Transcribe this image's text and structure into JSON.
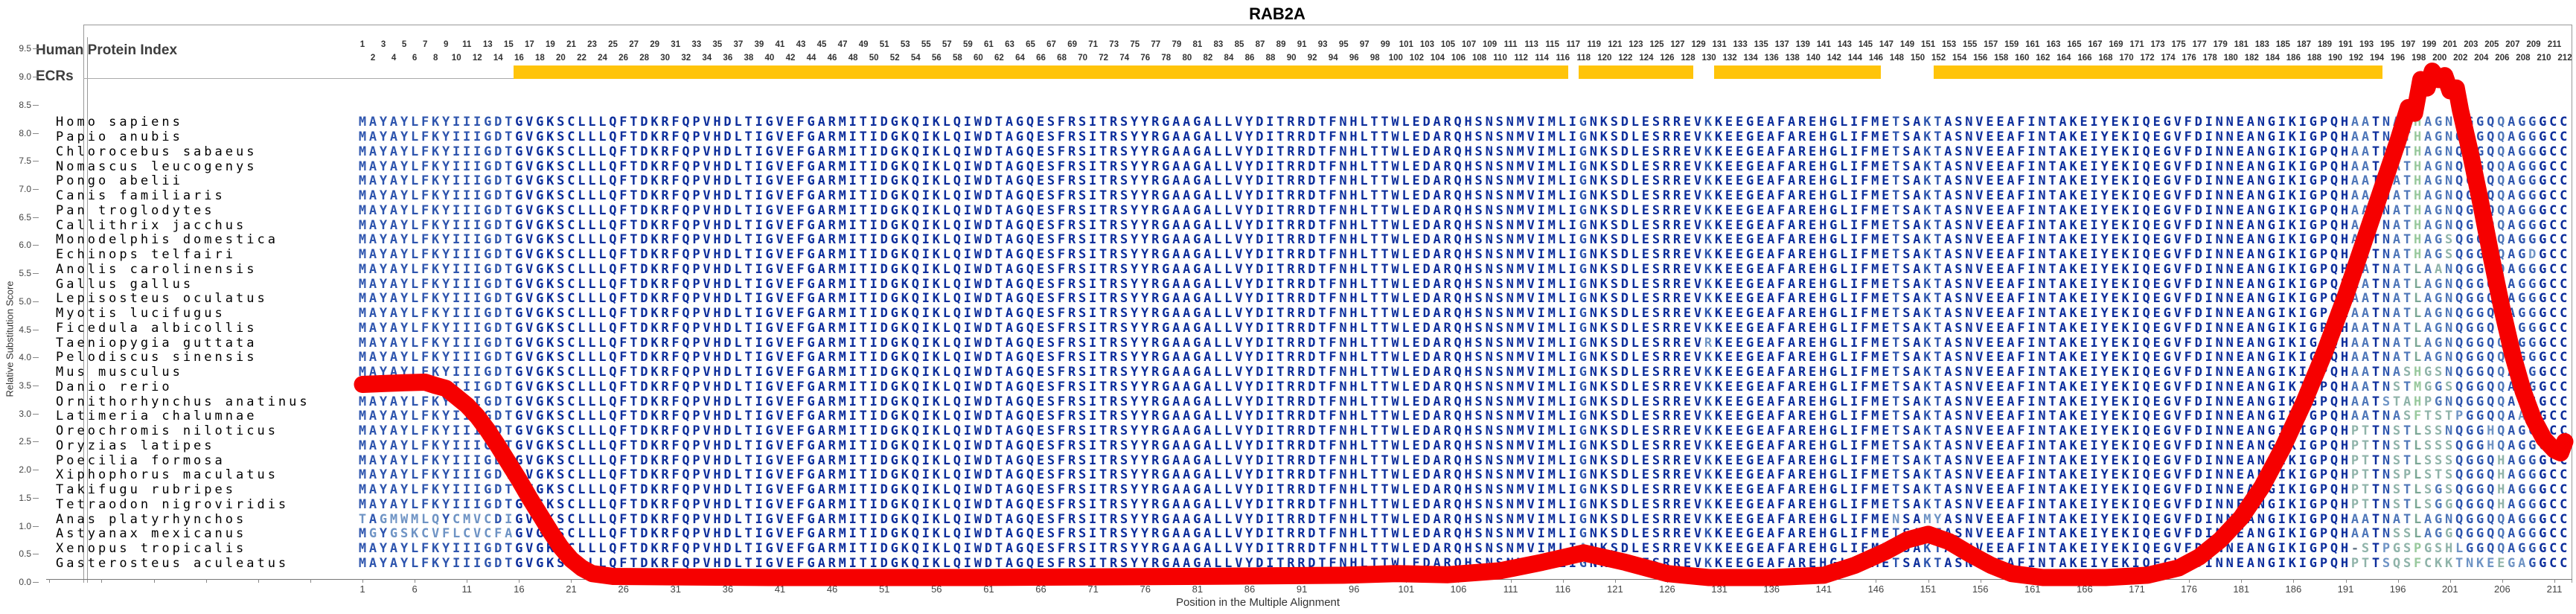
{
  "title": "RAB2A",
  "y_axis": {
    "label": "Relative Substitution Score",
    "min": 0.0,
    "max": 9.5,
    "step": 0.5
  },
  "x_axis": {
    "label": "Position in the Multiple Alignment",
    "first_tick": 1,
    "tick_step": 5,
    "last_tick": 211
  },
  "tracks": {
    "human_protein_index_label": "Human Protein Index",
    "ecrs_label": "ECRs"
  },
  "colors": {
    "ecr_yellow": "#FFC40A",
    "curve_red": "#F60000",
    "seq_dark": "#0d2e9c",
    "seq_medium": "#2e55ae",
    "seq_medium2": "#4f77b9",
    "seq_steel": "#6e93c4",
    "seq_steelgreen": "#7ca795",
    "seq_palesteel": "#8fb3a9",
    "seq_palegreen": "#98c89c",
    "gap_color": "#667788"
  },
  "alignment": {
    "positions": 212,
    "position_ruler": {
      "odd_row": "1..211 odd numbers",
      "even_row": "2..212 even numbers"
    },
    "base_sequence": "MAYAYLFKYIIIGDTGVGKSCLLLQFTDKRFQPVHDLTIGVEFGARMITIDGKQIKLQIWDTAGQESFRSITRSYYRGAAGALLVYDITRRDTFNHLTTWLEDARQHSNSNMVIMLIGNKSDLESRREVKKEEGEAFAREHGLIFMETSAKTASNVEEAFINTAKEIYEKIQEGVFDINNEANGIKIGPQHAATNATHAGNQGGQQAGGGCC",
    "species": [
      {
        "name": "Homo sapiens"
      },
      {
        "name": "Papio anubis"
      },
      {
        "name": "Chlorocebus sabaeus"
      },
      {
        "name": "Nomascus leucogenys"
      },
      {
        "name": "Pongo abelii"
      },
      {
        "name": "Canis familiaris"
      },
      {
        "name": "Pan troglodytes"
      },
      {
        "name": "Callithrix jacchus"
      },
      {
        "name": "Monodelphis domestica",
        "tail": "AATNATHAGSQGGQQAGGGCC"
      },
      {
        "name": "Echinops telfairi",
        "tail": "AATNATHAGSQGGQQAGDGCC"
      },
      {
        "name": "Anolis carolinensis",
        "tail": "AATNATLAANQGGQQAGGGCC"
      },
      {
        "name": "Gallus gallus",
        "tail": "AATNATLAGNQGGQQAGGGCC"
      },
      {
        "name": "Lepisosteus oculatus",
        "tail": "AATNATLAGNQGGQQAGGGCC"
      },
      {
        "name": "Myotis lucifugus",
        "tail": "AATNATLAGNQGGQQAGGGCC"
      },
      {
        "name": "Ficedula albicollis",
        "tail": "AATNATLAGNQGGQQAGGGCC"
      },
      {
        "name": "Taeniopygia guttata",
        "tail": "AATNATLAGNQGGQQAGGGCC",
        "subs": [
          {
            "p": 130,
            "a": "R"
          }
        ]
      },
      {
        "name": "Pelodiscus sinensis",
        "tail": "AATNATLAGNQGGQQAGGGCC"
      },
      {
        "name": "Mus musculus",
        "tail": "AATNASHGSNQGGQQAGGGCC"
      },
      {
        "name": "Danio rerio",
        "tail": "AATNSTMGGSQGGQQAGGGCC"
      },
      {
        "name": "Ornithorhynchus anatinus",
        "tail": "AATSTAHPGNQGGQQAGGGCC"
      },
      {
        "name": "Latimeria chalumnae",
        "tail": "AATNASFTSTPGGQQAAGGCC"
      },
      {
        "name": "Oreochromis niloticus",
        "tail": "PTTNSTLSSNQGGHQAGGGCC"
      },
      {
        "name": "Oryzias latipes",
        "tail": "PTTNSTLSSSQGGHQAGGGCC"
      },
      {
        "name": "Poecilia formosa",
        "tail": "PTTNSTLSSSQGGQHAGGGCC"
      },
      {
        "name": "Xiphophorus maculatus",
        "tail": "PTTNSPLSTSQGGQHAGGGCC"
      },
      {
        "name": "Takifugu rubripes",
        "tail": "PTTNSTLSGSQGGQHAGGGCC"
      },
      {
        "name": "Tetraodon nigroviridis",
        "tail": "PTTNSTLSGGQGGQHAGGGCC"
      },
      {
        "name": "Anas platyrhynchos",
        "nterm": "TAGMWMLQYCMVCDI",
        "tail": "AATNATLAGNQGGQQAGGGCC",
        "subs": [
          {
            "p": 148,
            "a": "N"
          },
          {
            "p": 151,
            "a": "M"
          },
          {
            "p": 152,
            "a": "Y"
          }
        ]
      },
      {
        "name": "Astyanax mexicanus",
        "nterm": "MGYGSKCVFLCVCFA",
        "tail": "AATNSSLAGGQGGQQAGGGCC"
      },
      {
        "name": "Xenopus tropicalis",
        "tail": "-STPGSPGSHLGGQQAGGGCC",
        "subs": [
          {
            "p": 118,
            "a": "A"
          }
        ]
      },
      {
        "name": "Gasterosteus aculeatus",
        "tail": "PTTSQSFCKKTNKEEGAGGCC"
      }
    ]
  },
  "chart_data": {
    "type": "line",
    "title": "RAB2A",
    "xlabel": "Position in the Multiple Alignment",
    "ylabel": "Relative Substitution Score",
    "xlim": [
      1,
      212
    ],
    "ylim": [
      0.0,
      9.5
    ],
    "grid": false,
    "legend": "none",
    "series_name": "Relative Substitution Score",
    "curve": [
      [
        1,
        3.52
      ],
      [
        5,
        3.55
      ],
      [
        7,
        3.56
      ],
      [
        8,
        3.5
      ],
      [
        9,
        3.45
      ],
      [
        10,
        3.3
      ],
      [
        11,
        3.15
      ],
      [
        12,
        2.95
      ],
      [
        13,
        2.7
      ],
      [
        14,
        2.42
      ],
      [
        15,
        2.12
      ],
      [
        16,
        1.82
      ],
      [
        17,
        1.5
      ],
      [
        18,
        1.2
      ],
      [
        19,
        0.9
      ],
      [
        20,
        0.62
      ],
      [
        21,
        0.4
      ],
      [
        22,
        0.25
      ],
      [
        23,
        0.15
      ],
      [
        25,
        0.1
      ],
      [
        40,
        0.08
      ],
      [
        60,
        0.08
      ],
      [
        80,
        0.1
      ],
      [
        95,
        0.12
      ],
      [
        100,
        0.15
      ],
      [
        105,
        0.13
      ],
      [
        110,
        0.2
      ],
      [
        114,
        0.35
      ],
      [
        118,
        0.52
      ],
      [
        122,
        0.35
      ],
      [
        126,
        0.15
      ],
      [
        130,
        0.08
      ],
      [
        136,
        0.08
      ],
      [
        141,
        0.12
      ],
      [
        144,
        0.3
      ],
      [
        147,
        0.55
      ],
      [
        149,
        0.75
      ],
      [
        151,
        0.85
      ],
      [
        153,
        0.72
      ],
      [
        155,
        0.5
      ],
      [
        157,
        0.3
      ],
      [
        159,
        0.15
      ],
      [
        162,
        0.08
      ],
      [
        168,
        0.08
      ],
      [
        172,
        0.12
      ],
      [
        175,
        0.25
      ],
      [
        177,
        0.45
      ],
      [
        179,
        0.75
      ],
      [
        181,
        1.15
      ],
      [
        183,
        1.7
      ],
      [
        185,
        2.4
      ],
      [
        187,
        3.2
      ],
      [
        189,
        4.1
      ],
      [
        191,
        5.1
      ],
      [
        193,
        6.2
      ],
      [
        195,
        7.3
      ],
      [
        196,
        7.85
      ],
      [
        197,
        8.45
      ],
      [
        197.6,
        8.35
      ],
      [
        198.2,
        8.95
      ],
      [
        198.8,
        8.8
      ],
      [
        199.3,
        9.1
      ],
      [
        199.9,
        8.95
      ],
      [
        200.5,
        9.02
      ],
      [
        201,
        8.75
      ],
      [
        201.6,
        8.8
      ],
      [
        202,
        8.4
      ],
      [
        203,
        7.6
      ],
      [
        204,
        6.7
      ],
      [
        205,
        5.75
      ],
      [
        206,
        4.85
      ],
      [
        207,
        4.05
      ],
      [
        208,
        3.4
      ],
      [
        209,
        2.9
      ],
      [
        210,
        2.55
      ],
      [
        211,
        2.35
      ],
      [
        211.6,
        2.3
      ],
      [
        212,
        2.5
      ]
    ],
    "ecr_segments": [
      [
        16,
        116
      ],
      [
        118,
        128
      ],
      [
        131,
        146
      ],
      [
        152,
        194
      ]
    ]
  }
}
